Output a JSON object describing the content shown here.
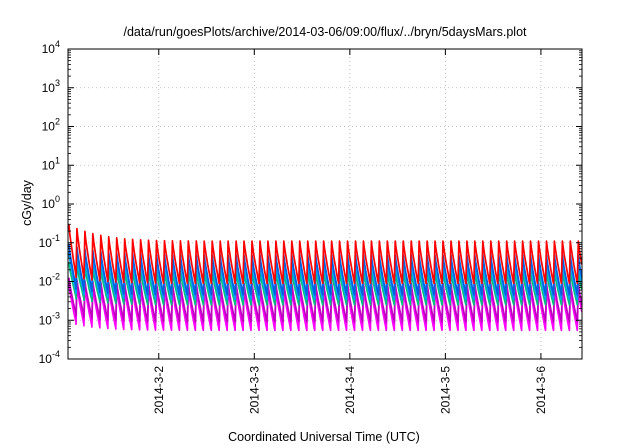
{
  "chart_data": {
    "type": "line",
    "title": "/data/run/goesPlots/archive/2014-03-06/09:00/flux/../bryn/5daysMars.plot",
    "xlabel": "Coordinated Universal Time (UTC)",
    "ylabel": "cGy/day",
    "yscale": "log",
    "ylim_exponents": [
      -4,
      4
    ],
    "y_tick_exponents": [
      -4,
      -3,
      -2,
      -1,
      0,
      1,
      2,
      3,
      4
    ],
    "x_ticks": [
      "2014-3-2",
      "2014-3-3",
      "2014-3-4",
      "2014-3-5",
      "2014-3-6"
    ],
    "xlim_days": [
      1.05,
      6.43
    ],
    "grid": true,
    "legend": "none",
    "cycle_days": 0.0833,
    "series": [
      {
        "color": "#ff00ff",
        "start": 0.0085,
        "peak": 0.0065,
        "trough": 0.00055
      },
      {
        "color": "#c000c0",
        "start": 0.012,
        "peak": 0.009,
        "trough": 0.0009
      },
      {
        "color": "#00c080",
        "start": 0.03,
        "peak": 0.018,
        "trough": 0.0025
      },
      {
        "color": "#00a0ff",
        "start": 0.055,
        "peak": 0.032,
        "trough": 0.0035
      },
      {
        "color": "#0060e0",
        "start": 0.09,
        "peak": 0.048,
        "trough": 0.0045
      },
      {
        "color": "#ff0000",
        "start": 0.28,
        "peak": 0.11,
        "trough": 0.009
      }
    ]
  }
}
